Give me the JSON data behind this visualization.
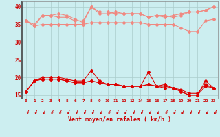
{
  "bg_color": "#cceef0",
  "grid_color": "#aacccc",
  "xlabel": "Vent moyen/en rafales ( km/h )",
  "xlabel_color": "#cc0000",
  "tick_color": "#cc0000",
  "ylim": [
    14,
    41.5
  ],
  "xlim": [
    -0.5,
    23.5
  ],
  "yticks": [
    15,
    20,
    25,
    30,
    35,
    40
  ],
  "xticks": [
    0,
    1,
    2,
    3,
    4,
    5,
    6,
    7,
    8,
    9,
    10,
    11,
    12,
    13,
    14,
    15,
    16,
    17,
    18,
    19,
    20,
    21,
    22,
    23
  ],
  "upper_lines": {
    "color": "#f08880",
    "series": [
      [
        36,
        35,
        37.5,
        37.5,
        37,
        37,
        36,
        36,
        40,
        38,
        38,
        38.5,
        38,
        38,
        38,
        37,
        37.5,
        37.5,
        37,
        37.5,
        38.5,
        38.5,
        39,
        40
      ],
      [
        36,
        34.5,
        35,
        35,
        35,
        35,
        35,
        35,
        35.5,
        35.5,
        35.5,
        35.5,
        35.5,
        35.5,
        35.5,
        35,
        35,
        35,
        35,
        34,
        33,
        33,
        36,
        36.5
      ],
      [
        36,
        34.5,
        37.5,
        37.5,
        38,
        37.5,
        36.5,
        35.5,
        40,
        38.5,
        38.5,
        38,
        38,
        38,
        38,
        37,
        37.5,
        37,
        37.5,
        38,
        38.5,
        38.5,
        39,
        40
      ]
    ]
  },
  "lower_lines": {
    "color": "#dd0000",
    "series": [
      [
        16,
        19,
        20,
        20,
        20,
        19.5,
        19,
        19,
        22,
        19,
        18,
        18,
        17.5,
        17.5,
        17.5,
        21.5,
        17.5,
        18,
        17,
        16,
        15,
        15,
        19,
        17
      ],
      [
        16,
        19,
        19.5,
        19.5,
        19.5,
        19,
        18.5,
        18.5,
        19,
        18.5,
        18,
        18,
        17.5,
        17.5,
        17.5,
        18,
        17.5,
        17.5,
        17,
        16.5,
        15.5,
        15.5,
        18,
        17
      ],
      [
        16,
        19,
        19.5,
        19.5,
        19.5,
        19,
        18.5,
        18.5,
        19,
        18.5,
        18,
        18,
        17.5,
        17.5,
        17.5,
        18,
        17.5,
        17,
        17,
        16,
        15,
        15,
        17.5,
        17
      ]
    ]
  },
  "marker": "D",
  "markersize": 2.0,
  "linewidth": 0.8
}
